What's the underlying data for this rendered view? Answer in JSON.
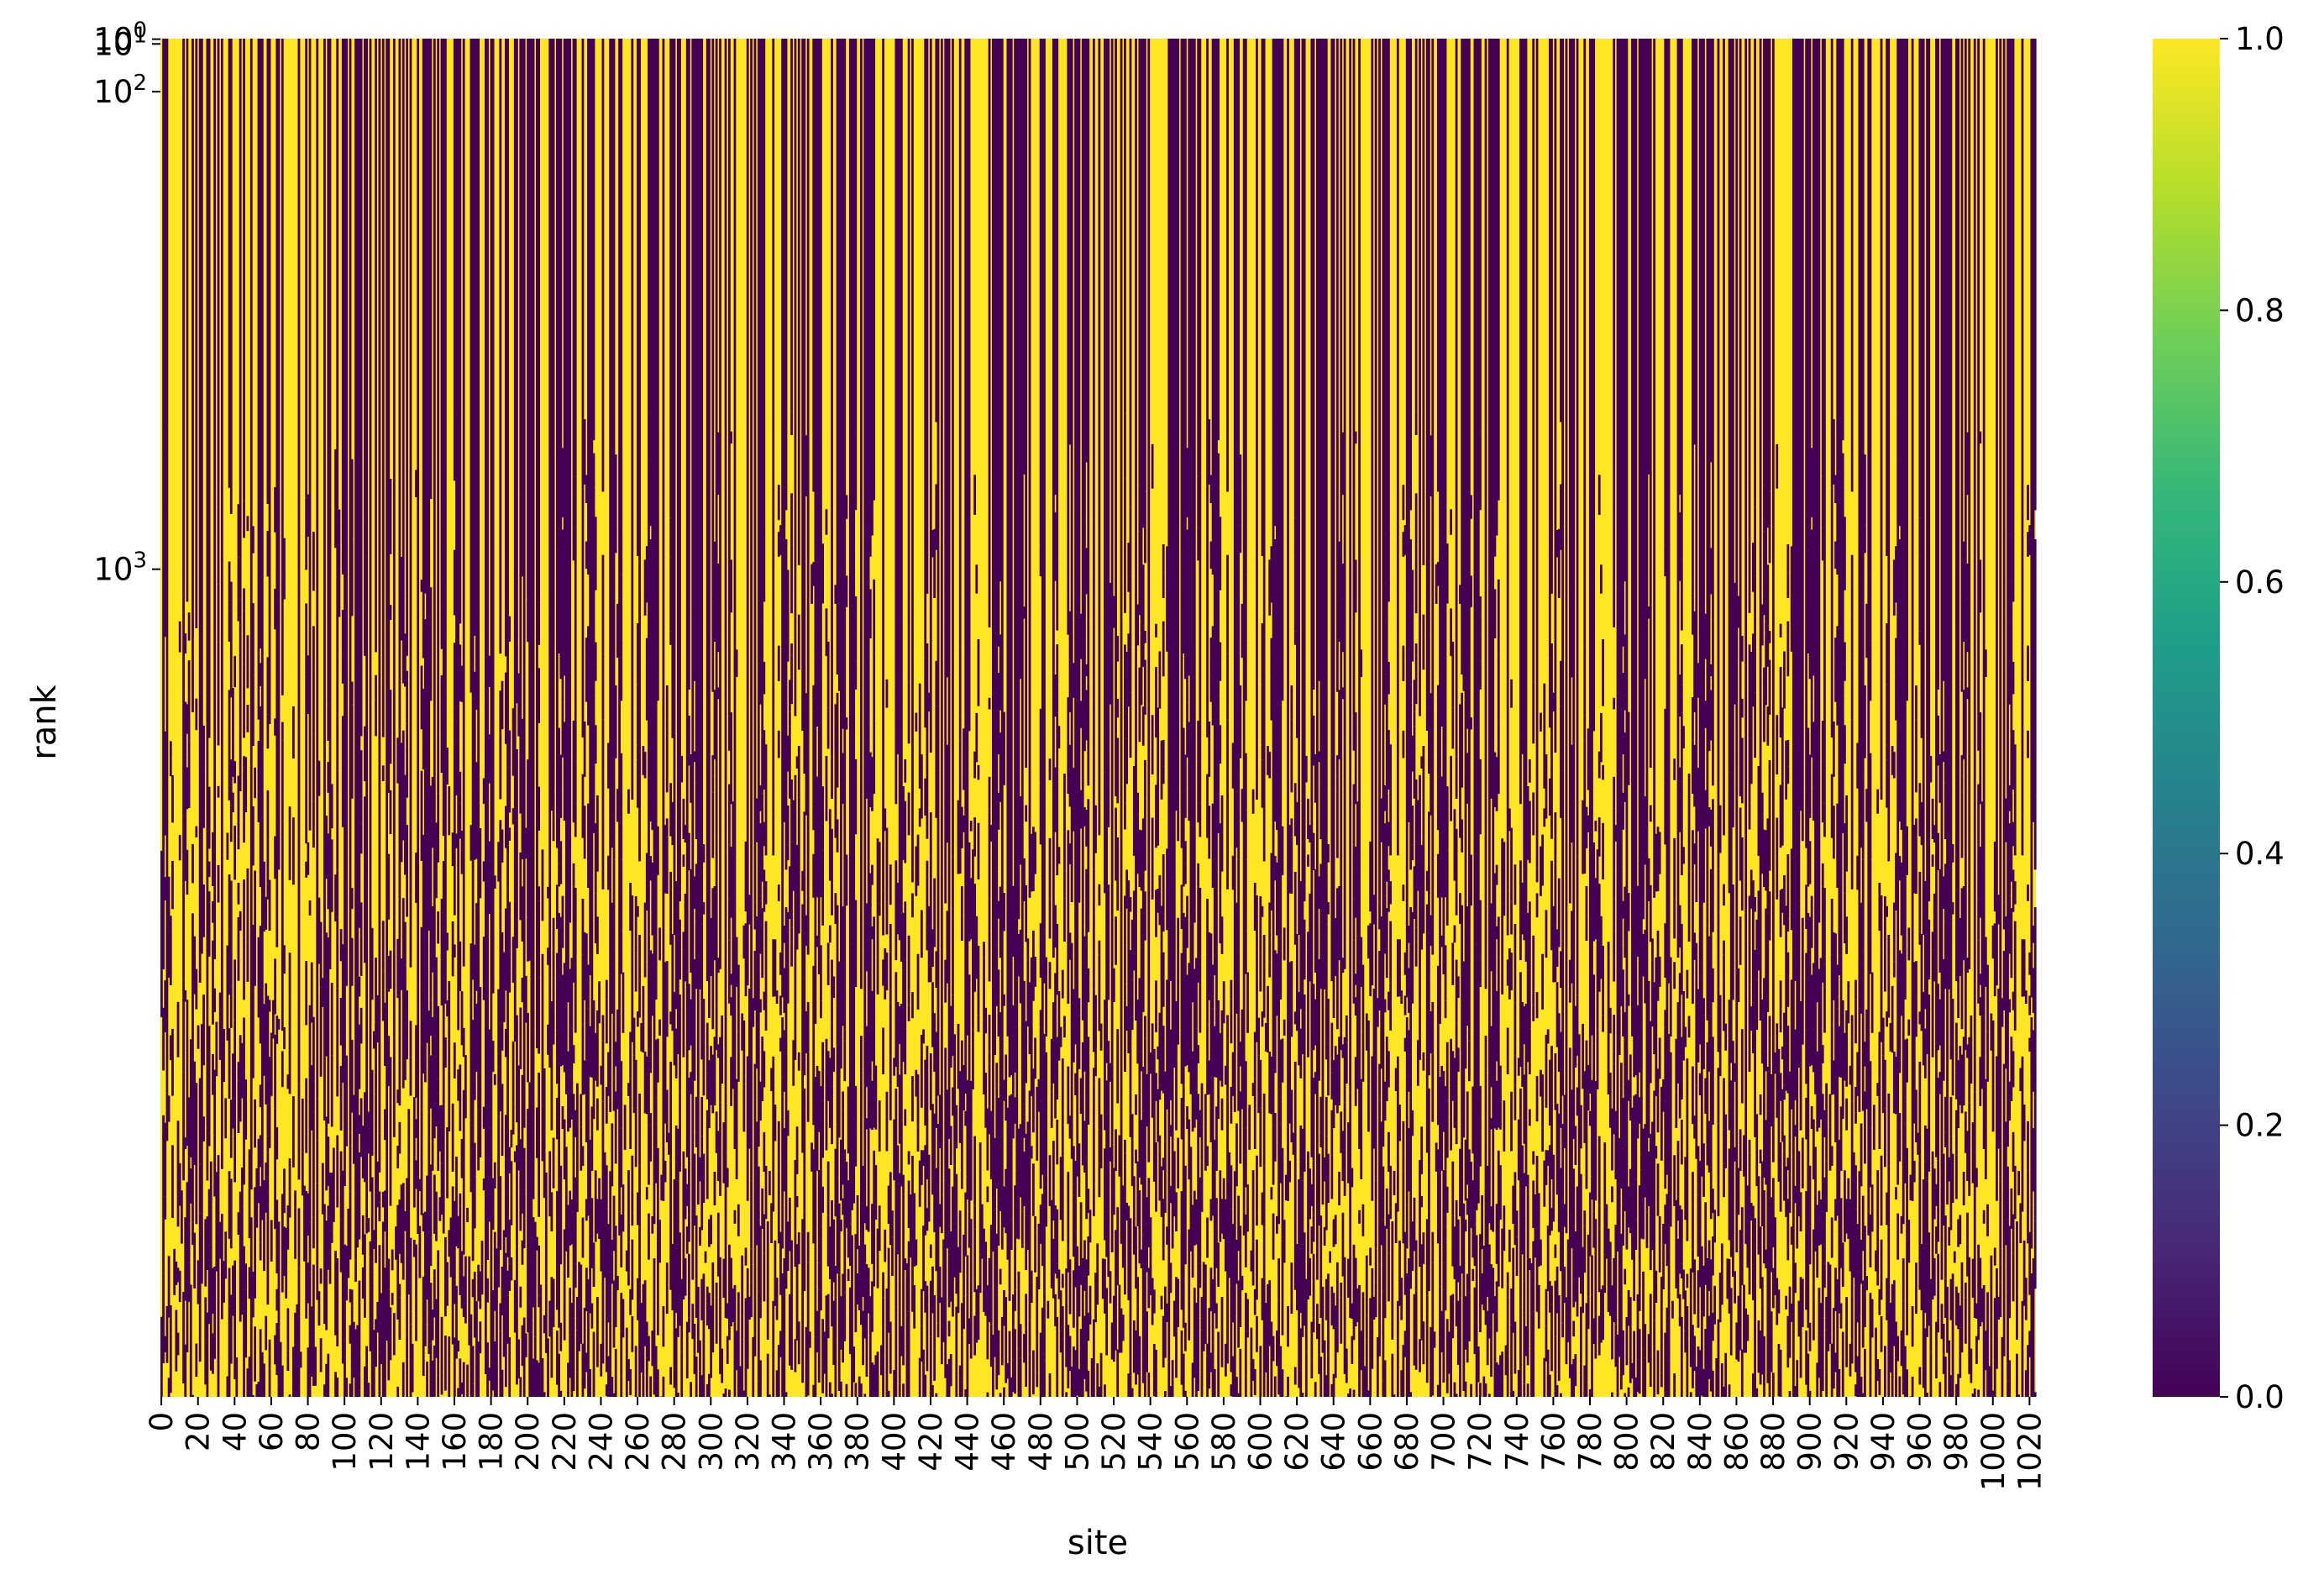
{
  "chart_data": {
    "type": "heatmap",
    "title": "",
    "xlabel": "site",
    "ylabel": "rank",
    "x_ticks": [
      0,
      20,
      40,
      60,
      80,
      100,
      120,
      140,
      160,
      180,
      200,
      220,
      240,
      260,
      280,
      300,
      320,
      340,
      360,
      380,
      400,
      420,
      440,
      460,
      480,
      500,
      520,
      540,
      560,
      580,
      600,
      620,
      640,
      660,
      680,
      700,
      720,
      740,
      760,
      780,
      800,
      820,
      840,
      860,
      880,
      900,
      920,
      940,
      960,
      980,
      1000,
      1020
    ],
    "x_tick_labels": [
      "0",
      "20",
      "40",
      "60",
      "80",
      "100",
      "120",
      "140",
      "160",
      "180",
      "200",
      "220",
      "240",
      "260",
      "280",
      "300",
      "320",
      "340",
      "360",
      "380",
      "400",
      "420",
      "440",
      "460",
      "480",
      "500",
      "520",
      "540",
      "560",
      "580",
      "600",
      "620",
      "640",
      "660",
      "680",
      "700",
      "720",
      "740",
      "760",
      "780",
      "800",
      "820",
      "840",
      "860",
      "880",
      "900",
      "920",
      "940",
      "960",
      "980",
      "1000",
      "1020"
    ],
    "x_range": [
      0,
      1024
    ],
    "y_scale": "log",
    "y_ticks": [
      {
        "value": 1,
        "base": "10",
        "exp": "0"
      },
      {
        "value": 10,
        "base": "10",
        "exp": "1"
      },
      {
        "value": 100,
        "base": "10",
        "exp": "2"
      },
      {
        "value": 1000,
        "base": "10",
        "exp": "3"
      }
    ],
    "y_range": [
      0,
      2560
    ],
    "colormap": "viridis",
    "colormap_stops": [
      "#440154",
      "#482878",
      "#3e4989",
      "#31688e",
      "#26828e",
      "#1f9e89",
      "#35b779",
      "#6ece58",
      "#b5de2b",
      "#fde725"
    ],
    "value_colors": {
      "low": "#440154",
      "high": "#fde725"
    },
    "vmin": 0.0,
    "vmax": 1.0,
    "colorbar_ticks": [
      0.0,
      0.2,
      0.4,
      0.6,
      0.8,
      1.0
    ],
    "colorbar_tick_labels": [
      "0.0",
      "0.2",
      "0.4",
      "0.6",
      "0.8",
      "1.0"
    ],
    "values_note": "binary 0/1 matrix; each column (site) is mostly constant over rank with increasing flips at higher rank"
  }
}
